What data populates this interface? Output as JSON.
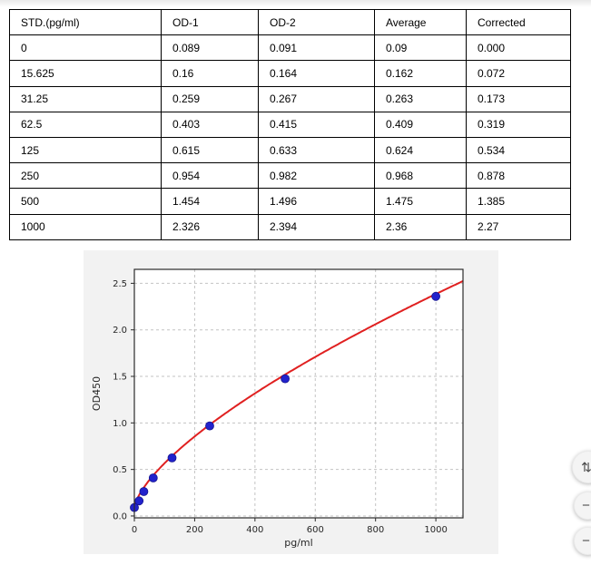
{
  "table": {
    "headers": [
      "STD.(pg/ml)",
      "OD-1",
      "OD-2",
      "Average",
      "Corrected"
    ],
    "rows": [
      [
        "0",
        "0.089",
        "0.091",
        "0.09",
        "0.000"
      ],
      [
        "15.625",
        "0.16",
        "0.164",
        "0.162",
        "0.072"
      ],
      [
        "31.25",
        "0.259",
        "0.267",
        "0.263",
        "0.173"
      ],
      [
        "62.5",
        "0.403",
        "0.415",
        "0.409",
        "0.319"
      ],
      [
        "125",
        "0.615",
        "0.633",
        "0.624",
        "0.534"
      ],
      [
        "250",
        "0.954",
        "0.982",
        "0.968",
        "0.878"
      ],
      [
        "500",
        "1.454",
        "1.496",
        "1.475",
        "1.385"
      ],
      [
        "1000",
        "2.326",
        "2.394",
        "2.36",
        "2.27"
      ]
    ]
  },
  "chart_data": {
    "type": "scatter",
    "title": "",
    "xlabel": "pg/ml",
    "ylabel": "OD450",
    "x": [
      0,
      15.625,
      31.25,
      62.5,
      125,
      250,
      500,
      1000
    ],
    "y": [
      0.09,
      0.162,
      0.263,
      0.409,
      0.624,
      0.968,
      1.475,
      2.36
    ],
    "x_ticks": [
      0,
      200,
      400,
      600,
      800,
      1000
    ],
    "y_ticks": [
      0.0,
      0.5,
      1.0,
      1.5,
      2.0,
      2.5
    ],
    "xlim": [
      0,
      1090
    ],
    "ylim": [
      -0.02,
      2.65
    ],
    "grid": true,
    "legend": "none",
    "point_color": "#2222cc",
    "point_edge_color": "#15158f",
    "fit_curve": {
      "type": "power",
      "c": 0.09,
      "k": 0.0205,
      "p": 0.683,
      "color": "#e02020"
    },
    "grid_color": "#c3c3c3",
    "spine_color": "#2b2b2b",
    "plot_bg": "#ffffff",
    "figure_bg": "#f2f2f2",
    "tick_label_color": "#262626"
  },
  "fabs": [
    {
      "glyph": "⇅",
      "icon": "up-down-arrows-icon"
    },
    {
      "glyph": "−",
      "icon": "minus-icon"
    },
    {
      "glyph": "−",
      "icon": "minus-icon"
    }
  ]
}
